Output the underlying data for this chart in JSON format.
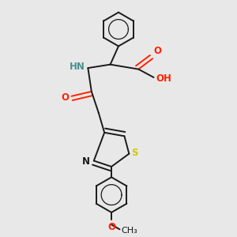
{
  "background_color": "#e8e8e8",
  "bond_color": "#1a1a1a",
  "oxygen_color": "#ff2200",
  "nitrogen_color": "#0000ff",
  "sulfur_color": "#cccc00",
  "teal_color": "#4a9090",
  "figsize": [
    3.0,
    3.0
  ],
  "dpi": 100,
  "xlim": [
    0,
    10
  ],
  "ylim": [
    0,
    10
  ]
}
